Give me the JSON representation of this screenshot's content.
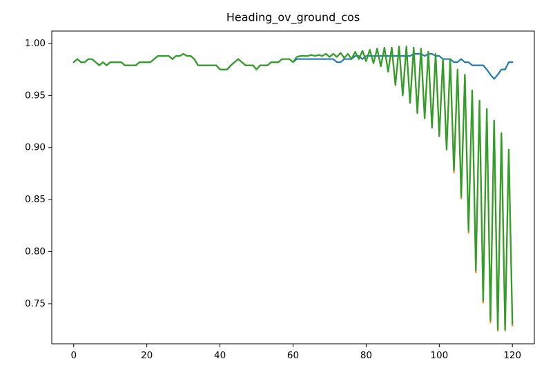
{
  "chart_data": {
    "type": "line",
    "title": "Heading_ov_ground_cos",
    "x": [
      0,
      1,
      2,
      3,
      4,
      5,
      6,
      7,
      8,
      9,
      10,
      11,
      12,
      13,
      14,
      15,
      16,
      17,
      18,
      19,
      20,
      21,
      22,
      23,
      24,
      25,
      26,
      27,
      28,
      29,
      30,
      31,
      32,
      33,
      34,
      35,
      36,
      37,
      38,
      39,
      40,
      41,
      42,
      43,
      44,
      45,
      46,
      47,
      48,
      49,
      50,
      51,
      52,
      53,
      54,
      55,
      56,
      57,
      58,
      59,
      60,
      61,
      62,
      63,
      64,
      65,
      66,
      67,
      68,
      69,
      70,
      71,
      72,
      73,
      74,
      75,
      76,
      77,
      78,
      79,
      80,
      81,
      82,
      83,
      84,
      85,
      86,
      87,
      88,
      89,
      90,
      91,
      92,
      93,
      94,
      95,
      96,
      97,
      98,
      99,
      100,
      101,
      102,
      103,
      104,
      105,
      106,
      107,
      108,
      109,
      110,
      111,
      112,
      113,
      114,
      115,
      116,
      117,
      118,
      119,
      120
    ],
    "series": [
      {
        "color": "#1f77b4",
        "values": [
          0.982,
          0.985,
          0.982,
          0.982,
          0.985,
          0.985,
          0.982,
          0.979,
          0.982,
          0.979,
          0.982,
          0.982,
          0.982,
          0.982,
          0.979,
          0.979,
          0.979,
          0.979,
          0.982,
          0.982,
          0.982,
          0.982,
          0.985,
          0.988,
          0.988,
          0.988,
          0.988,
          0.985,
          0.988,
          0.988,
          0.99,
          0.988,
          0.988,
          0.985,
          0.979,
          0.979,
          0.979,
          0.979,
          0.979,
          0.979,
          0.975,
          0.975,
          0.975,
          0.979,
          0.982,
          0.985,
          0.982,
          0.979,
          0.979,
          0.979,
          0.975,
          0.979,
          0.979,
          0.979,
          0.982,
          0.982,
          0.982,
          0.985,
          0.985,
          0.985,
          0.982,
          0.985,
          0.985,
          0.985,
          0.985,
          0.985,
          0.985,
          0.985,
          0.985,
          0.985,
          0.985,
          0.985,
          0.982,
          0.982,
          0.985,
          0.985,
          0.985,
          0.988,
          0.988,
          0.985,
          0.988,
          0.988,
          0.988,
          0.988,
          0.988,
          0.988,
          0.988,
          0.988,
          0.988,
          0.988,
          0.988,
          0.988,
          0.988,
          0.99,
          0.99,
          0.99,
          0.988,
          0.99,
          0.99,
          0.988,
          0.988,
          0.985,
          0.985,
          0.985,
          0.982,
          0.982,
          0.985,
          0.982,
          0.982,
          0.979,
          0.979,
          0.979,
          0.979,
          0.975,
          0.97,
          0.966,
          0.97,
          0.975,
          0.975,
          0.982,
          0.982
        ]
      },
      {
        "color": "#ff7f0e",
        "values": [
          0.982,
          0.985,
          0.982,
          0.982,
          0.985,
          0.985,
          0.982,
          0.979,
          0.982,
          0.979,
          0.982,
          0.982,
          0.982,
          0.982,
          0.979,
          0.979,
          0.979,
          0.979,
          0.982,
          0.982,
          0.982,
          0.982,
          0.985,
          0.988,
          0.988,
          0.988,
          0.988,
          0.985,
          0.988,
          0.988,
          0.99,
          0.988,
          0.988,
          0.985,
          0.979,
          0.979,
          0.979,
          0.979,
          0.979,
          0.979,
          0.975,
          0.975,
          0.975,
          0.979,
          0.982,
          0.985,
          0.982,
          0.979,
          0.979,
          0.979,
          0.975,
          0.979,
          0.979,
          0.979,
          0.982,
          0.982,
          0.982,
          0.985,
          0.985,
          0.985,
          0.982,
          0.987,
          0.988,
          0.988,
          0.988,
          0.989,
          0.988,
          0.989,
          0.988,
          0.99,
          0.987,
          0.99,
          0.987,
          0.991,
          0.986,
          0.99,
          0.985,
          0.992,
          0.985,
          0.993,
          0.983,
          0.994,
          0.981,
          0.995,
          0.978,
          0.996,
          0.973,
          0.996,
          0.96,
          0.997,
          0.95,
          0.997,
          0.943,
          0.996,
          0.933,
          0.995,
          0.928,
          0.992,
          0.919,
          0.99,
          0.911,
          0.985,
          0.898,
          0.985,
          0.876,
          0.975,
          0.851,
          0.97,
          0.818,
          0.955,
          0.78,
          0.945,
          0.751,
          0.937,
          0.732,
          0.926,
          0.724,
          0.914,
          0.724,
          0.898,
          0.729
        ]
      },
      {
        "color": "#2ca02c",
        "values": [
          0.982,
          0.985,
          0.982,
          0.982,
          0.985,
          0.985,
          0.982,
          0.979,
          0.982,
          0.979,
          0.982,
          0.982,
          0.982,
          0.982,
          0.979,
          0.979,
          0.979,
          0.979,
          0.982,
          0.982,
          0.982,
          0.982,
          0.985,
          0.988,
          0.988,
          0.988,
          0.988,
          0.985,
          0.988,
          0.988,
          0.99,
          0.988,
          0.988,
          0.985,
          0.979,
          0.979,
          0.979,
          0.979,
          0.979,
          0.979,
          0.975,
          0.975,
          0.975,
          0.979,
          0.982,
          0.985,
          0.982,
          0.979,
          0.979,
          0.979,
          0.975,
          0.979,
          0.979,
          0.979,
          0.982,
          0.982,
          0.982,
          0.985,
          0.985,
          0.985,
          0.982,
          0.987,
          0.988,
          0.988,
          0.988,
          0.989,
          0.988,
          0.989,
          0.988,
          0.99,
          0.987,
          0.99,
          0.987,
          0.991,
          0.986,
          0.99,
          0.985,
          0.992,
          0.985,
          0.993,
          0.983,
          0.994,
          0.981,
          0.995,
          0.978,
          0.996,
          0.973,
          0.996,
          0.96,
          0.997,
          0.95,
          0.997,
          0.943,
          0.996,
          0.933,
          0.995,
          0.928,
          0.992,
          0.919,
          0.99,
          0.911,
          0.985,
          0.898,
          0.985,
          0.878,
          0.975,
          0.853,
          0.97,
          0.82,
          0.955,
          0.782,
          0.945,
          0.753,
          0.937,
          0.734,
          0.926,
          0.725,
          0.914,
          0.725,
          0.898,
          0.731
        ]
      }
    ],
    "xlim": [
      -6,
      126
    ],
    "ylim": [
      0.7115,
      1.0119
    ],
    "xticks": [
      0,
      20,
      40,
      60,
      80,
      100,
      120
    ],
    "yticks": [
      {
        "value": 0.75,
        "label": "0.75"
      },
      {
        "value": 0.8,
        "label": "0.80"
      },
      {
        "value": 0.85,
        "label": "0.85"
      },
      {
        "value": 0.9,
        "label": "0.90"
      },
      {
        "value": 0.95,
        "label": "0.95"
      },
      {
        "value": 1,
        "label": "1.00"
      }
    ]
  }
}
